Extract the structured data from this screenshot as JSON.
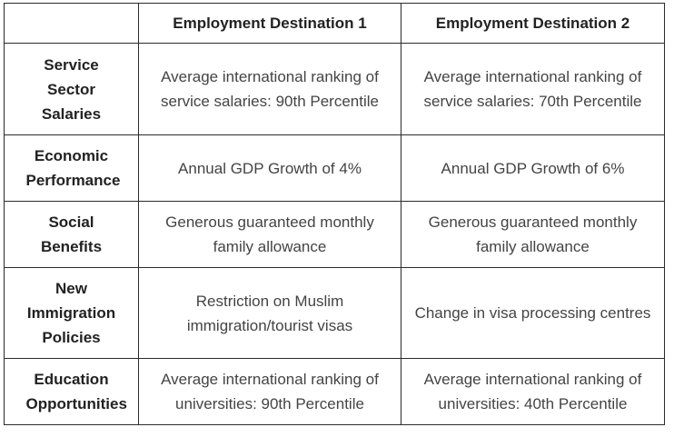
{
  "table": {
    "headers": [
      "",
      "Employment Destination 1",
      "Employment Destination 2"
    ],
    "rows": [
      {
        "label": "Service Sector Salaries",
        "dest1": "Average international ranking of service salaries: 90th Percentile",
        "dest2": "Average international ranking of service salaries: 70th Percentile"
      },
      {
        "label": "Economic Performance",
        "dest1": "Annual GDP Growth of 4%",
        "dest2": "Annual GDP Growth of 6%"
      },
      {
        "label": "Social Benefits",
        "dest1": "Generous guaranteed monthly family allowance",
        "dest2": "Generous guaranteed monthly family allowance"
      },
      {
        "label": "New Immigration Policies",
        "dest1": "Restriction on Muslim immigration/tourist visas",
        "dest2": "Change in visa processing centres"
      },
      {
        "label": "Education Opportunities",
        "dest1": "Average international ranking of universities: 90th Percentile",
        "dest2": "Average international ranking of universities: 40th Percentile"
      }
    ]
  }
}
